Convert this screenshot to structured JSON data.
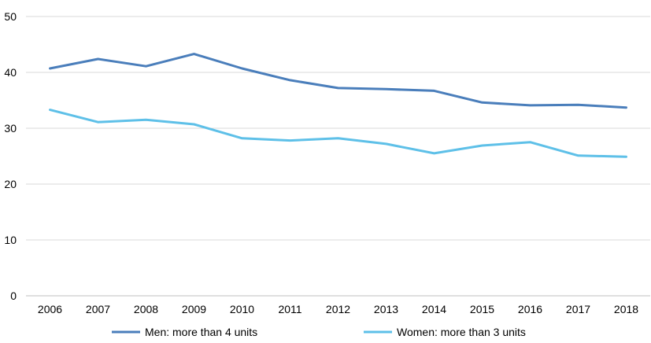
{
  "chart_data": {
    "type": "line",
    "title": "",
    "xlabel": "",
    "ylabel": "",
    "categories": [
      "2006",
      "2007",
      "2008",
      "2009",
      "2010",
      "2011",
      "2012",
      "2013",
      "2014",
      "2015",
      "2016",
      "2017",
      "2018"
    ],
    "ylim": [
      0,
      50
    ],
    "yticks": [
      0,
      10,
      20,
      30,
      40,
      50
    ],
    "grid": "horizontal",
    "legend_position": "bottom",
    "series": [
      {
        "name": "Men: more than 4 units",
        "color": "#4a7ebb",
        "values": [
          40.7,
          42.4,
          41.1,
          43.3,
          40.7,
          38.6,
          37.2,
          37.0,
          36.7,
          34.6,
          34.1,
          34.2,
          33.7
        ]
      },
      {
        "name": "Women: more than 3 units",
        "color": "#5ec0e8",
        "values": [
          33.3,
          31.1,
          31.5,
          30.7,
          28.2,
          27.8,
          28.2,
          27.2,
          25.5,
          26.9,
          27.5,
          25.1,
          24.9
        ]
      }
    ]
  }
}
